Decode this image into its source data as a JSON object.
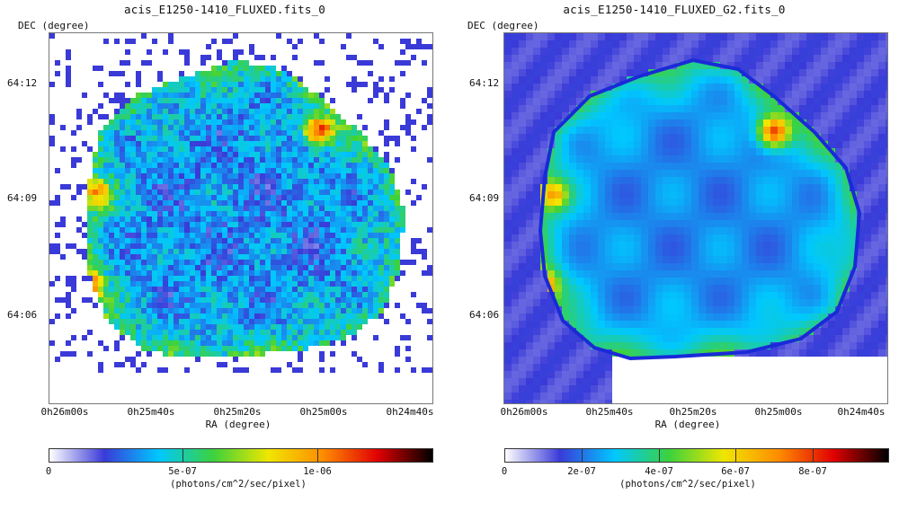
{
  "panels": [
    {
      "title": "acis_E1250-1410_FLUXED.fits_0",
      "y_axis_label": "DEC (degree)",
      "x_axis_label": "RA (degree)",
      "y_ticks": [
        "64:12",
        "64:09",
        "64:06"
      ],
      "x_ticks": [
        "0h26m00s",
        "0h25m40s",
        "0h25m20s",
        "0h25m00s",
        "0h24m40s"
      ],
      "colorbar_ticks": [
        "0",
        "5e-07",
        "1e-06"
      ],
      "colorbar_units": "(photons/cm^2/sec/pixel)",
      "image_style": "noisy raw flux map"
    },
    {
      "title": "acis_E1250-1410_FLUXED_G2.fits_0",
      "y_axis_label": "DEC (degree)",
      "x_axis_label": "RA (degree)",
      "y_ticks": [
        "64:12",
        "64:09",
        "64:06"
      ],
      "x_ticks": [
        "0h26m00s",
        "0h25m40s",
        "0h25m20s",
        "0h25m00s",
        "0h24m40s"
      ],
      "colorbar_ticks": [
        "0",
        "2e-07",
        "4e-07",
        "6e-07",
        "8e-07"
      ],
      "colorbar_units": "(photons/cm^2/sec/pixel)",
      "image_style": "gaussian smoothed flux map"
    }
  ],
  "colormap": [
    "#ffffff",
    "#3a3ad8",
    "#00c8ff",
    "#3cd23c",
    "#f0e600",
    "#ff8c00",
    "#e00000",
    "#000000"
  ]
}
